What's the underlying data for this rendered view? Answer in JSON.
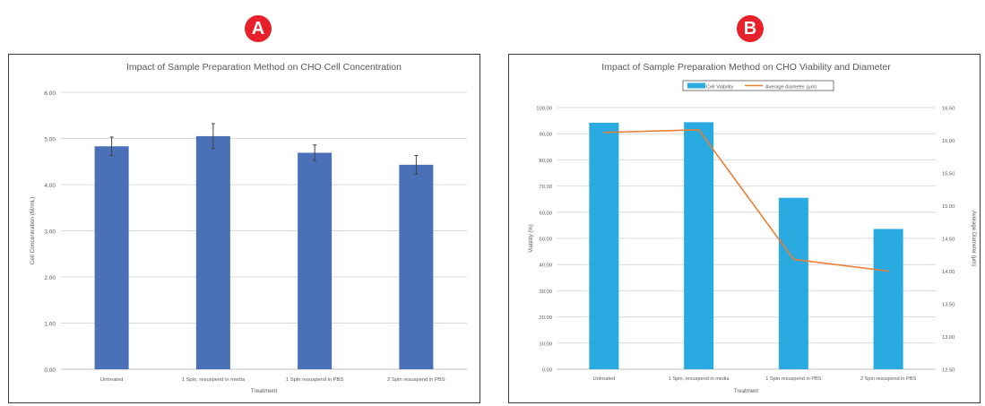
{
  "badges": {
    "a": "A",
    "b": "B"
  },
  "colors": {
    "badge": "#e8202a",
    "bar_a": "#4a70b8",
    "bar_b": "#29abe2",
    "line_b": "#ed7d31",
    "grid": "#d9d9d9"
  },
  "chart_data": [
    {
      "type": "bar",
      "title": "Impact of Sample Preparation Method on CHO Cell Concentration",
      "xlabel": "Treatment",
      "ylabel": "Cell Concentration (M/mL)",
      "categories": [
        "Untreated",
        "1 Spin, resuspend in media",
        "1 Spin resuspend in PBS",
        "2 Spin resuspend in PBS"
      ],
      "values": [
        4.83,
        5.05,
        4.69,
        4.43
      ],
      "errors": [
        0.2,
        0.27,
        0.17,
        0.2
      ],
      "ylim": [
        0,
        6
      ],
      "yticks": [
        "0.00",
        "1.00",
        "2.00",
        "3.00",
        "4.00",
        "5.00",
        "6.00"
      ],
      "grid": true
    },
    {
      "type": "bar",
      "title": "Impact of Sample Preparation Method on CHO Viability and Diameter",
      "xlabel": "Treatment",
      "ylabel": "Viability (%)",
      "y2label": "Average Diameter (µm)",
      "categories": [
        "Untreated",
        "1 Spin, resuspend in media",
        "1 Spin resuspend in PBS",
        "2 Spin resuspend in PBS"
      ],
      "series": [
        {
          "name": "Cell Viability",
          "type": "bar",
          "axis": "left",
          "values": [
            94.2,
            94.4,
            65.5,
            53.6
          ]
        },
        {
          "name": "Average diameter (µm)",
          "type": "line",
          "axis": "right",
          "values": [
            16.12,
            16.16,
            14.18,
            14.0
          ]
        }
      ],
      "ylim": [
        0,
        100
      ],
      "y2lim": [
        12.5,
        16.5
      ],
      "yticks": [
        "0.00",
        "10.00",
        "20.00",
        "30.00",
        "40.00",
        "50.00",
        "60.00",
        "70.00",
        "80.00",
        "90.00",
        "100.00"
      ],
      "y2ticks": [
        "12.50",
        "13.00",
        "13.50",
        "14.00",
        "14.50",
        "15.00",
        "15.50",
        "16.00",
        "16.50"
      ],
      "legend": "top",
      "grid": true
    }
  ]
}
